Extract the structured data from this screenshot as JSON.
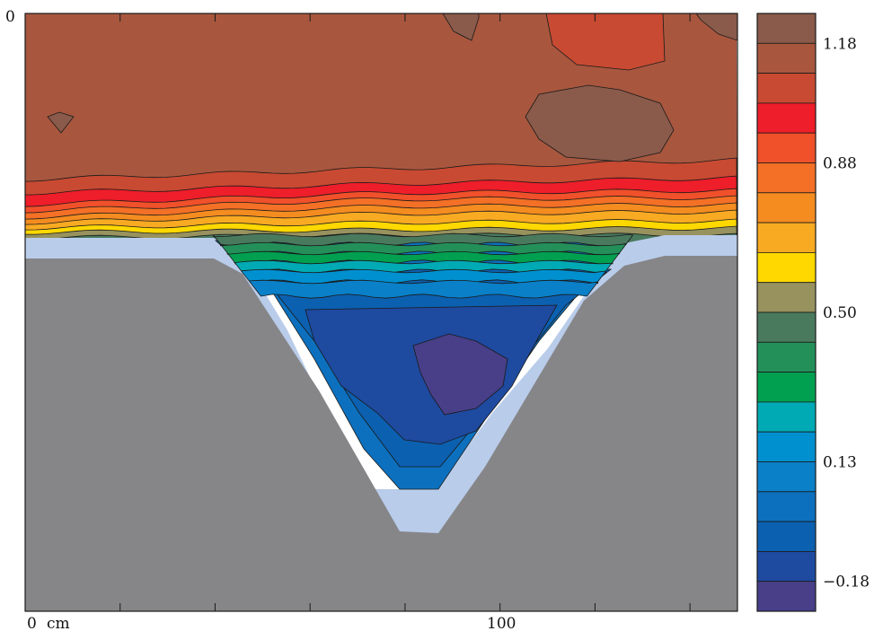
{
  "chart_data": {
    "type": "heatmap",
    "title": "",
    "xlabel": "",
    "ylabel": "",
    "x_unit_label": "cm",
    "x_ticks": [
      {
        "value": 0,
        "label": "0"
      },
      {
        "value": 100,
        "label": "100"
      }
    ],
    "x_minor_ticks": [
      0,
      20,
      40,
      60,
      80,
      100,
      120,
      140
    ],
    "xlim": [
      0,
      150
    ],
    "y_ticks": [
      {
        "value": 0,
        "label": "0"
      }
    ],
    "colorbar": {
      "levels": [
        {
          "value": 1.26,
          "color": "#8a5a4a"
        },
        {
          "value": 1.18,
          "color": "#a8573e"
        },
        {
          "value": 1.1,
          "color": "#c84a32"
        },
        {
          "value": 1.03,
          "color": "#ee1e2a"
        },
        {
          "value": 0.95,
          "color": "#f0502a"
        },
        {
          "value": 0.88,
          "color": "#f37026"
        },
        {
          "value": 0.8,
          "color": "#f48c20"
        },
        {
          "value": 0.73,
          "color": "#f8aa22"
        },
        {
          "value": 0.65,
          "color": "#ffd800"
        },
        {
          "value": 0.57,
          "color": "#97925e"
        },
        {
          "value": 0.5,
          "color": "#4a7a5e"
        },
        {
          "value": 0.42,
          "color": "#23905a"
        },
        {
          "value": 0.34,
          "color": "#00a050"
        },
        {
          "value": 0.27,
          "color": "#00aab4"
        },
        {
          "value": 0.19,
          "color": "#0090d0"
        },
        {
          "value": 0.13,
          "color": "#0a80c8"
        },
        {
          "value": 0.05,
          "color": "#0c70be"
        },
        {
          "value": -0.03,
          "color": "#0c60b0"
        },
        {
          "value": -0.1,
          "color": "#1e4aa0"
        },
        {
          "value": -0.18,
          "color": "#483f88"
        }
      ],
      "tick_labels": [
        {
          "value": 1.18,
          "label": "1.18"
        },
        {
          "value": 0.88,
          "label": "0.88"
        },
        {
          "value": 0.5,
          "label": "0.50"
        },
        {
          "value": 0.13,
          "label": "0.13"
        },
        {
          "value": -0.18,
          "label": "−0.18"
        }
      ]
    },
    "colors": {
      "ground": "#868689",
      "boundary": "#b9ccea",
      "frame": "#1a1a1a"
    },
    "grid": false
  }
}
